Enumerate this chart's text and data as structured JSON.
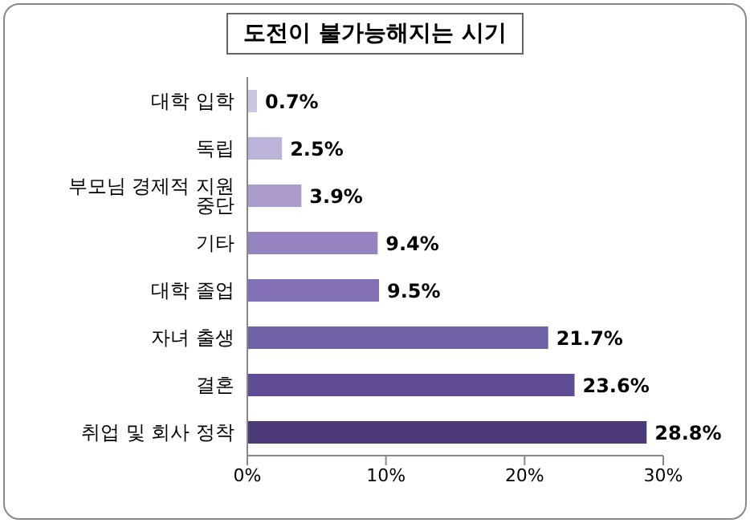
{
  "chart_data": {
    "type": "bar",
    "orientation": "horizontal",
    "title": "도전이 불가능해지는 시기",
    "categories": [
      "대학 입학",
      "독립",
      "부모님 경제적 지원 중단",
      "기타",
      "대학 졸업",
      "자녀 출생",
      "결혼",
      "취업 및 회사 정착"
    ],
    "values": [
      0.7,
      2.5,
      3.9,
      9.4,
      9.5,
      21.7,
      23.6,
      28.8
    ],
    "value_labels": [
      "0.7%",
      "2.5%",
      "3.9%",
      "9.4%",
      "9.5%",
      "21.7%",
      "23.6%",
      "28.8%"
    ],
    "colors": [
      "#cdc6e0",
      "#bdb2d8",
      "#ab9ccc",
      "#9684c0",
      "#8470b4",
      "#7060a6",
      "#5f4c94",
      "#4c3a78"
    ],
    "xlim": [
      0,
      30
    ],
    "xticks": [
      {
        "value": 0,
        "label": "0%"
      },
      {
        "value": 10,
        "label": "10%"
      },
      {
        "value": 20,
        "label": "20%"
      },
      {
        "value": 30,
        "label": "30%"
      }
    ],
    "grid": false,
    "legend": false
  }
}
